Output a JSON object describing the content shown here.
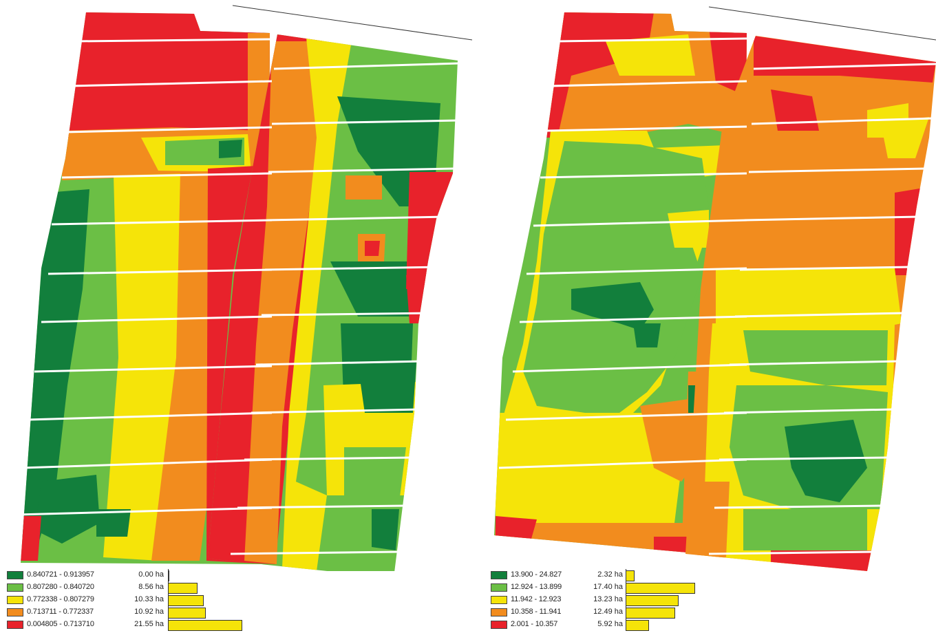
{
  "colors": {
    "dark_green": "#127f3c",
    "green": "#6bbf45",
    "yellow": "#f5e409",
    "orange": "#f28c1e",
    "red": "#e8222b"
  },
  "left_map": {
    "legend": [
      {
        "range": "0.840721 - 0.913957",
        "area": "0.00 ha",
        "color": "#127f3c",
        "hectares": 0.0
      },
      {
        "range": "0.807280 - 0.840720",
        "area": "8.56 ha",
        "color": "#6bbf45",
        "hectares": 8.56
      },
      {
        "range": "0.772338 - 0.807279",
        "area": "10.33 ha",
        "color": "#f5e409",
        "hectares": 10.33
      },
      {
        "range": "0.713711 - 0.772337",
        "area": "10.92 ha",
        "color": "#f28c1e",
        "hectares": 10.92
      },
      {
        "range": "0.004805 - 0.713710",
        "area": "21.55 ha",
        "color": "#e8222b",
        "hectares": 21.55
      }
    ]
  },
  "right_map": {
    "legend": [
      {
        "range": "13.900 - 24.827",
        "area": "2.32 ha",
        "color": "#127f3c",
        "hectares": 2.32
      },
      {
        "range": "12.924 - 13.899",
        "area": "17.40 ha",
        "color": "#6bbf45",
        "hectares": 17.4
      },
      {
        "range": "11.942 - 12.923",
        "area": "13.23 ha",
        "color": "#f5e409",
        "hectares": 13.23
      },
      {
        "range": "10.358 - 11.941",
        "area": "12.49 ha",
        "color": "#f28c1e",
        "hectares": 12.49
      },
      {
        "range": "2.001 - 10.357",
        "area": "5.92 ha",
        "color": "#e8222b",
        "hectares": 5.92
      }
    ]
  }
}
